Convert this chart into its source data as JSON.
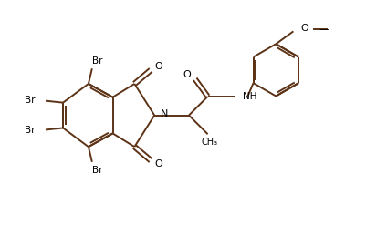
{
  "background_color": "#ffffff",
  "bond_color": "#5C3317",
  "bond_width": 1.4,
  "figsize": [
    4.02,
    2.69
  ],
  "dpi": 100,
  "xlim": [
    0,
    10
  ],
  "ylim": [
    0,
    6.7
  ]
}
